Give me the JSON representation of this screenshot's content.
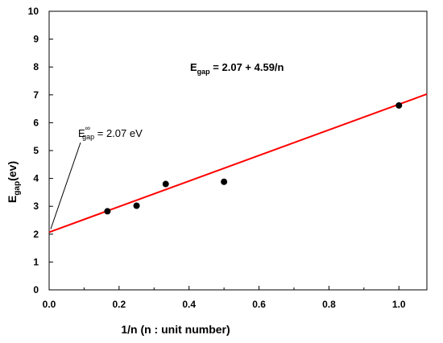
{
  "chart_data": {
    "type": "scatter",
    "xlabel": "1/n (n : unit number)",
    "ylabel": {
      "main": "E",
      "sub": "gap",
      "tail": "(ev)"
    },
    "xlim": [
      0,
      1.08
    ],
    "ylim": [
      0,
      10
    ],
    "x_ticks": [
      "0.0",
      "0.2",
      "0.4",
      "0.6",
      "0.8",
      "1.0"
    ],
    "y_ticks": [
      "0",
      "1",
      "2",
      "3",
      "4",
      "5",
      "6",
      "7",
      "8",
      "9",
      "10"
    ],
    "grid": false,
    "series": [
      {
        "x": [
          0.1667,
          0.25,
          0.3333,
          0.5,
          1.0
        ],
        "y": [
          2.82,
          3.02,
          3.8,
          3.88,
          6.62
        ],
        "color": "#000000"
      }
    ],
    "fit_line": {
      "intercept": 2.07,
      "slope": 4.59,
      "color": "#ff0000",
      "x_range": [
        0,
        1.08
      ]
    },
    "annotations": {
      "equation": {
        "main": "E",
        "sub": "gap",
        "tail": " = 2.07 + 4.59/n"
      },
      "limit": {
        "main": "E",
        "sub": "gap",
        "sup": "∞",
        "tail": " = 2.07 eV",
        "point_x": 0,
        "point_y": 2.07
      }
    }
  }
}
